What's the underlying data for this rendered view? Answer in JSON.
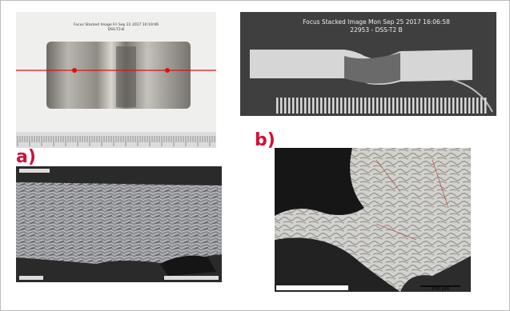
{
  "panels": {
    "a": {
      "label": "a)",
      "photo_caption": "Focus Stacked Image Fri Sep 22 2017 10:19:06",
      "photo_id": "DSS-T2-B"
    },
    "b": {
      "label": "b)",
      "photo_caption": "Focus Stacked Image Mon Sep 25 2017 16:06:58",
      "photo_id": "22953 - DSS-T2 B",
      "scale_bar": "100 µm"
    }
  }
}
